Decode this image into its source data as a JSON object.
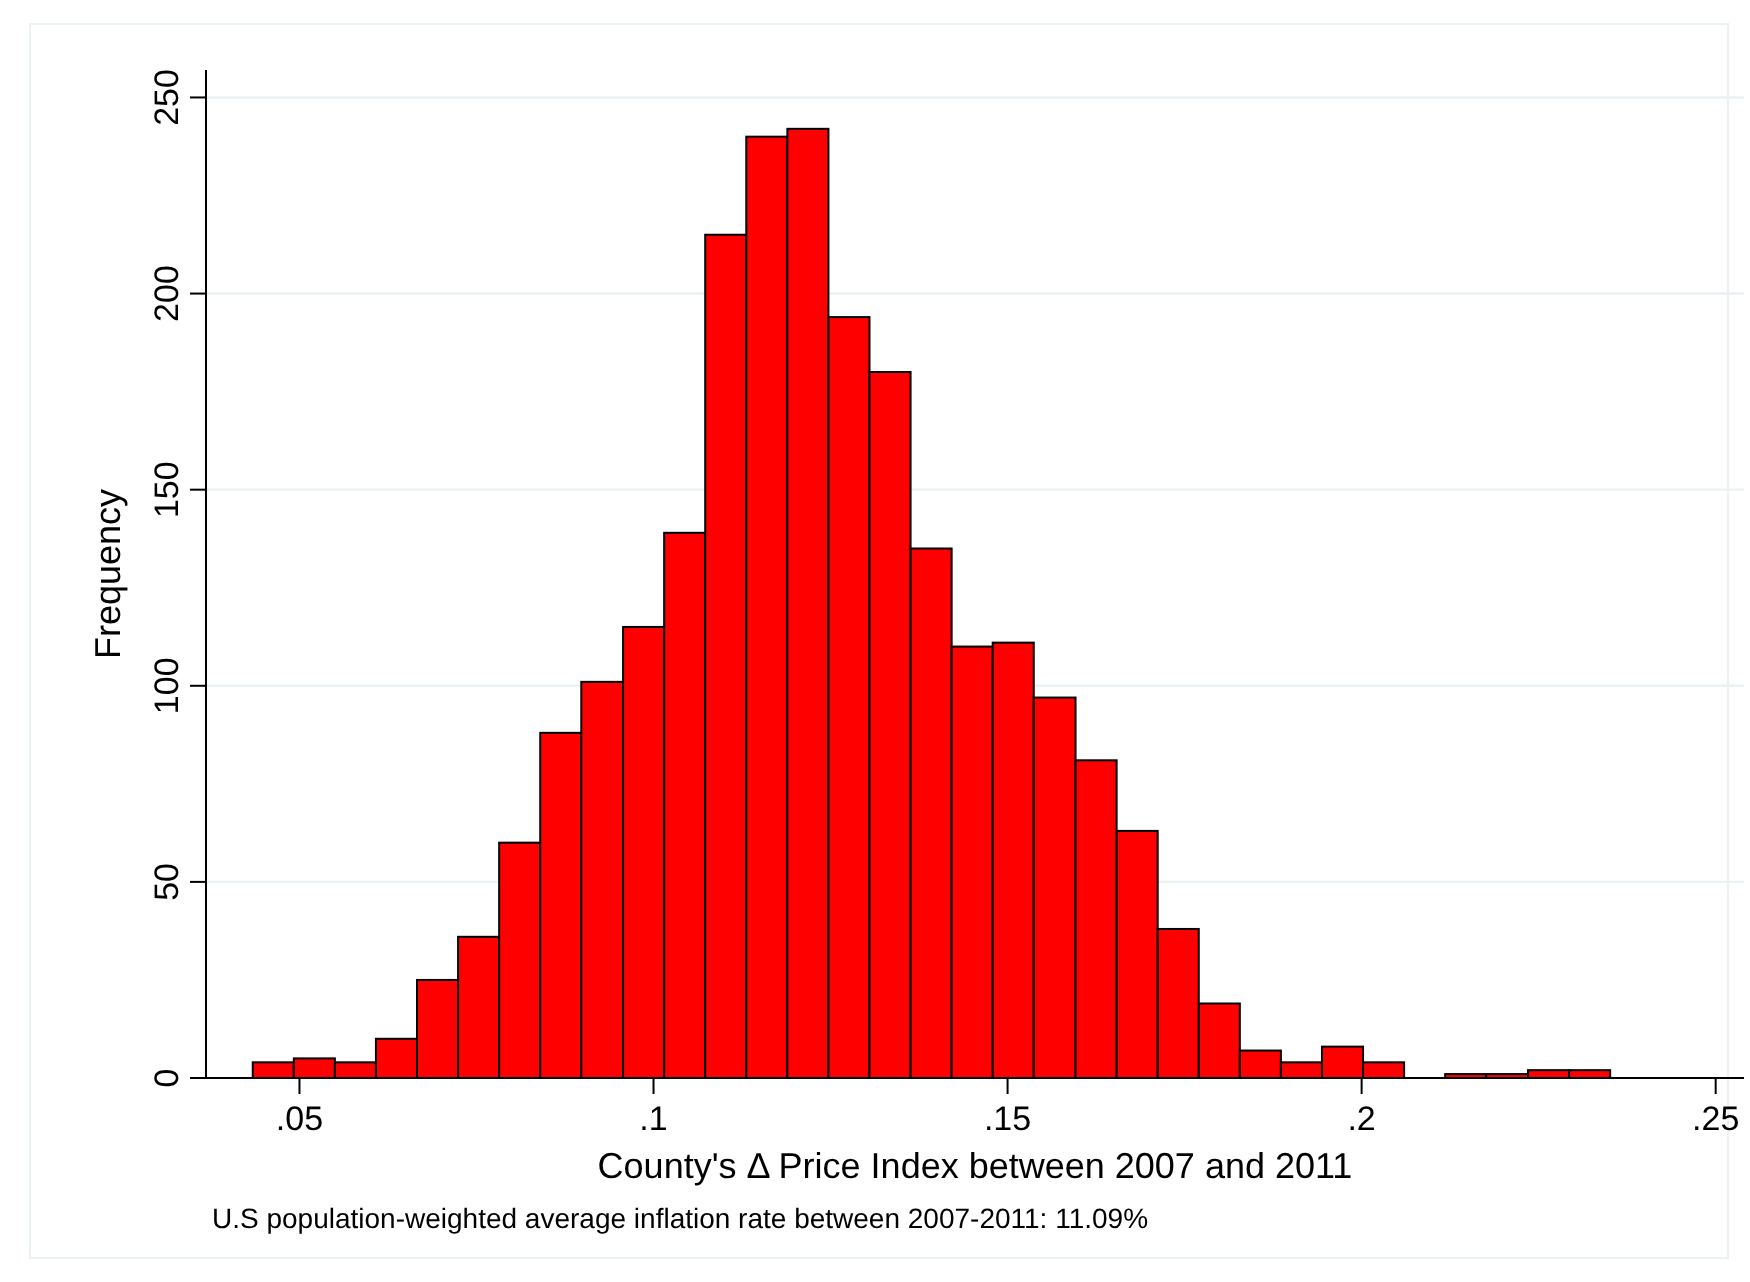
{
  "chart_data": {
    "type": "histogram",
    "xlabel": "County's Δ Price Index between 2007 and 2011",
    "ylabel": "Frequency",
    "annotations": [
      "U.S population-weighted average inflation rate between 2007-2011: 11.09%"
    ],
    "bins": [
      0.0434,
      0.0492,
      0.055,
      0.0608,
      0.0666,
      0.0724,
      0.0782,
      0.084,
      0.0898,
      0.0957,
      0.1015,
      0.1073,
      0.1131,
      0.1189,
      0.1247,
      0.1305,
      0.1363,
      0.1421,
      0.1479,
      0.1537,
      0.1596,
      0.1654,
      0.1712,
      0.177,
      0.1828,
      0.1886,
      0.1944,
      0.2002,
      0.206,
      0.2118,
      0.2176,
      0.2235,
      0.2293,
      0.2351
    ],
    "values": [
      4,
      5,
      4,
      10,
      25,
      36,
      60,
      88,
      101,
      115,
      139,
      215,
      240,
      242,
      194,
      180,
      135,
      110,
      111,
      97,
      81,
      63,
      38,
      19,
      7,
      4,
      8,
      4,
      0,
      1,
      1,
      2,
      2
    ],
    "color": "#ff0000",
    "xlim": [
      0.0368,
      0.254
    ],
    "ylim": [
      0,
      257
    ],
    "xticks": [
      {
        "value": 0.05,
        "label": ".05"
      },
      {
        "value": 0.1,
        "label": ".1"
      },
      {
        "value": 0.15,
        "label": ".15"
      },
      {
        "value": 0.2,
        "label": ".2"
      },
      {
        "value": 0.25,
        "label": ".25"
      }
    ],
    "yticks": [
      0,
      50,
      100,
      150,
      200,
      250
    ],
    "grid": "y"
  }
}
